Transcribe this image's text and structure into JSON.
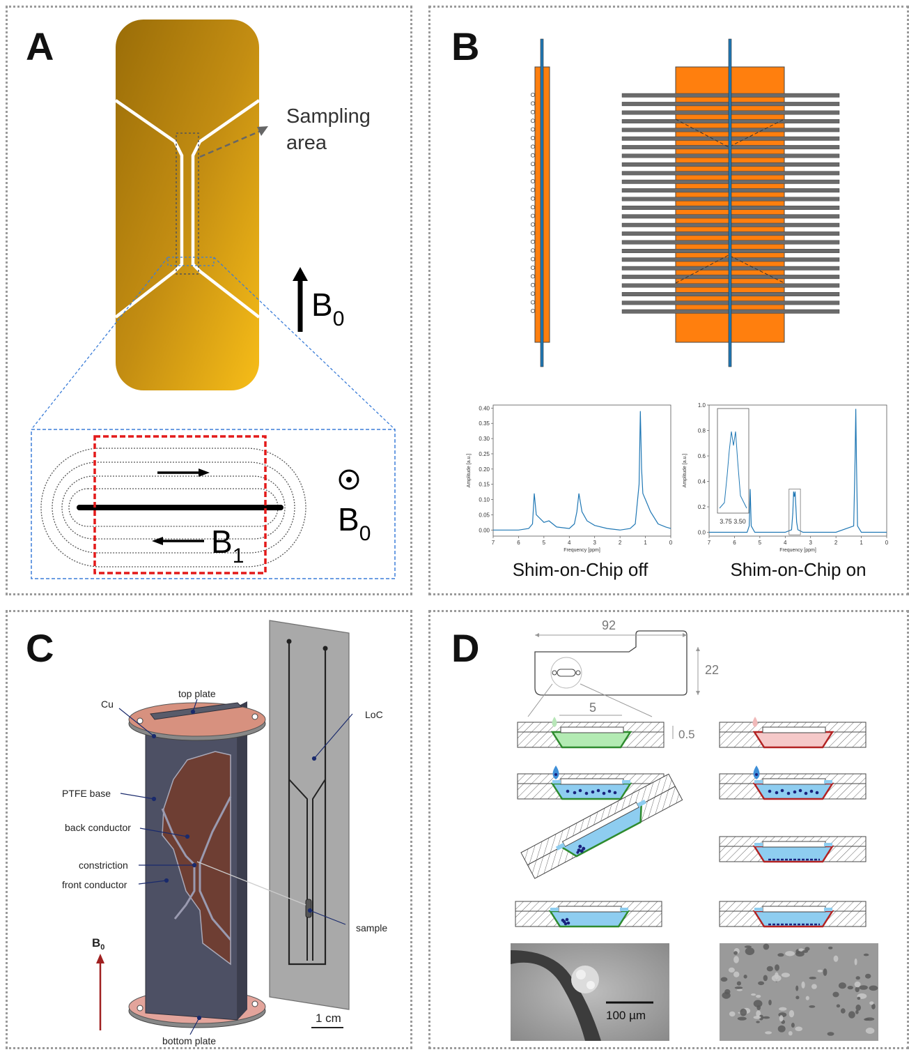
{
  "panels": {
    "a": {
      "letter": "A",
      "sampling_label_1": "Sampling",
      "sampling_label_2": "area",
      "b0_label": "B",
      "b0_sub": "0",
      "b1_label": "B",
      "b1_sub": "1",
      "b0_dot_label": "B",
      "b0_dot_sub": "0"
    },
    "b": {
      "letter": "B",
      "chart_data": [
        {
          "type": "line",
          "title": "Shim-on-Chip off",
          "xlabel": "Frequency [ppm]",
          "ylabel": "Amplitude [a.u.]",
          "xlim": [
            7,
            0
          ],
          "ylim": [
            -0.02,
            0.41
          ],
          "xticks": [
            "7",
            "6",
            "5",
            "4",
            "3",
            "2",
            "1",
            "0"
          ],
          "yticks": [
            "0.00",
            "0.05",
            "0.10",
            "0.15",
            "0.20",
            "0.25",
            "0.30",
            "0.35",
            "0.40"
          ],
          "x": [
            7.0,
            6.0,
            5.6,
            5.45,
            5.38,
            5.3,
            5.0,
            4.8,
            4.5,
            4.0,
            3.8,
            3.7,
            3.62,
            3.5,
            3.3,
            3.0,
            2.5,
            2.0,
            1.6,
            1.4,
            1.25,
            1.2,
            1.15,
            1.1,
            1.0,
            0.8,
            0.5,
            0.2,
            0.0
          ],
          "y": [
            0.0,
            0.0,
            0.005,
            0.02,
            0.12,
            0.05,
            0.025,
            0.03,
            0.01,
            0.005,
            0.02,
            0.06,
            0.12,
            0.06,
            0.03,
            0.015,
            0.005,
            0.0,
            0.005,
            0.02,
            0.15,
            0.39,
            0.2,
            0.12,
            0.1,
            0.06,
            0.02,
            0.01,
            0.005
          ]
        },
        {
          "type": "line",
          "title": "Shim-on-Chip on",
          "xlabel": "Frequency [ppm]",
          "ylabel": "Amplitude [a.u.]",
          "xlim": [
            7,
            0
          ],
          "ylim": [
            -0.03,
            1.0
          ],
          "xticks": [
            "7",
            "6",
            "5",
            "4",
            "3",
            "2",
            "1",
            "0"
          ],
          "yticks": [
            "0.0",
            "0.2",
            "0.4",
            "0.6",
            "0.8",
            "1.0"
          ],
          "inset_xticks": [
            "3.75",
            "3.50"
          ],
          "x": [
            7.0,
            6.0,
            5.5,
            5.42,
            5.38,
            5.34,
            5.2,
            4.0,
            3.75,
            3.7,
            3.67,
            3.64,
            3.61,
            3.58,
            3.55,
            3.5,
            3.3,
            2.0,
            1.3,
            1.25,
            1.22,
            1.19,
            1.15,
            1.0,
            0.0
          ],
          "y": [
            0.0,
            0.0,
            0.0,
            0.05,
            0.34,
            0.05,
            0.0,
            0.0,
            0.02,
            0.15,
            0.32,
            0.28,
            0.32,
            0.2,
            0.08,
            0.02,
            0.0,
            0.0,
            0.05,
            0.55,
            0.97,
            0.55,
            0.05,
            0.0,
            0.0
          ]
        }
      ]
    },
    "c": {
      "letter": "C",
      "labels": {
        "top_plate": "top plate",
        "cu": "Cu",
        "ptfe_base": "PTFE base",
        "back_conductor": "back conductor",
        "constriction": "constriction",
        "front_conductor": "front conductor",
        "bottom_plate": "bottom plate",
        "loc": "LoC",
        "sample": "sample",
        "b0": "B",
        "b0_sub": "0",
        "scale": "1 cm"
      }
    },
    "d": {
      "letter": "D",
      "dim_length": "92",
      "dim_width": "22",
      "dim_channel": "5",
      "dim_depth": "0.5",
      "scale": "100 µm"
    }
  }
}
